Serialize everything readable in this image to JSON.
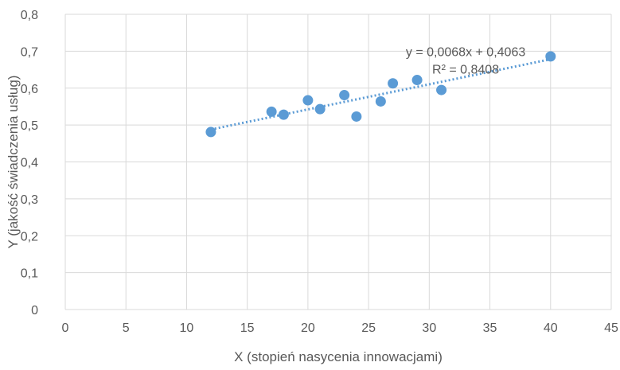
{
  "chart_data": {
    "type": "scatter",
    "title": "",
    "xlabel": "X (stopień nasycenia innowacjami)",
    "ylabel": "Y (jakość świadczenia usług)",
    "xlim": [
      0,
      45
    ],
    "ylim": [
      0,
      0.8
    ],
    "x_ticks": [
      "0",
      "5",
      "10",
      "15",
      "20",
      "25",
      "30",
      "35",
      "40",
      "45"
    ],
    "y_ticks": [
      "0",
      "0,1",
      "0,2",
      "0,3",
      "0,4",
      "0,5",
      "0,6",
      "0,7",
      "0,8"
    ],
    "x_tick_values": [
      0,
      5,
      10,
      15,
      20,
      25,
      30,
      35,
      40,
      45
    ],
    "y_tick_values": [
      0,
      0.1,
      0.2,
      0.3,
      0.4,
      0.5,
      0.6,
      0.7,
      0.8
    ],
    "grid": true,
    "series": [
      {
        "points": [
          {
            "x": 12,
            "y": 0.481
          },
          {
            "x": 17,
            "y": 0.536
          },
          {
            "x": 18,
            "y": 0.528
          },
          {
            "x": 20,
            "y": 0.567
          },
          {
            "x": 21,
            "y": 0.543
          },
          {
            "x": 23,
            "y": 0.581
          },
          {
            "x": 24,
            "y": 0.523
          },
          {
            "x": 26,
            "y": 0.564
          },
          {
            "x": 27,
            "y": 0.613
          },
          {
            "x": 29,
            "y": 0.622
          },
          {
            "x": 31,
            "y": 0.595
          },
          {
            "x": 40,
            "y": 0.686
          }
        ],
        "color": "#5B9BD5"
      }
    ],
    "trendline": {
      "type": "linear",
      "slope": 0.0068,
      "intercept": 0.4063,
      "x_range": [
        12,
        40
      ],
      "color": "#5B9BD5",
      "style": "dotted",
      "equation_label": "y = 0,0068x + 0,4063",
      "r2_label": "R² = 0,8408"
    },
    "colors": {
      "grid": "#d9d9d9",
      "text": "#595959",
      "point": "#5B9BD5"
    }
  }
}
